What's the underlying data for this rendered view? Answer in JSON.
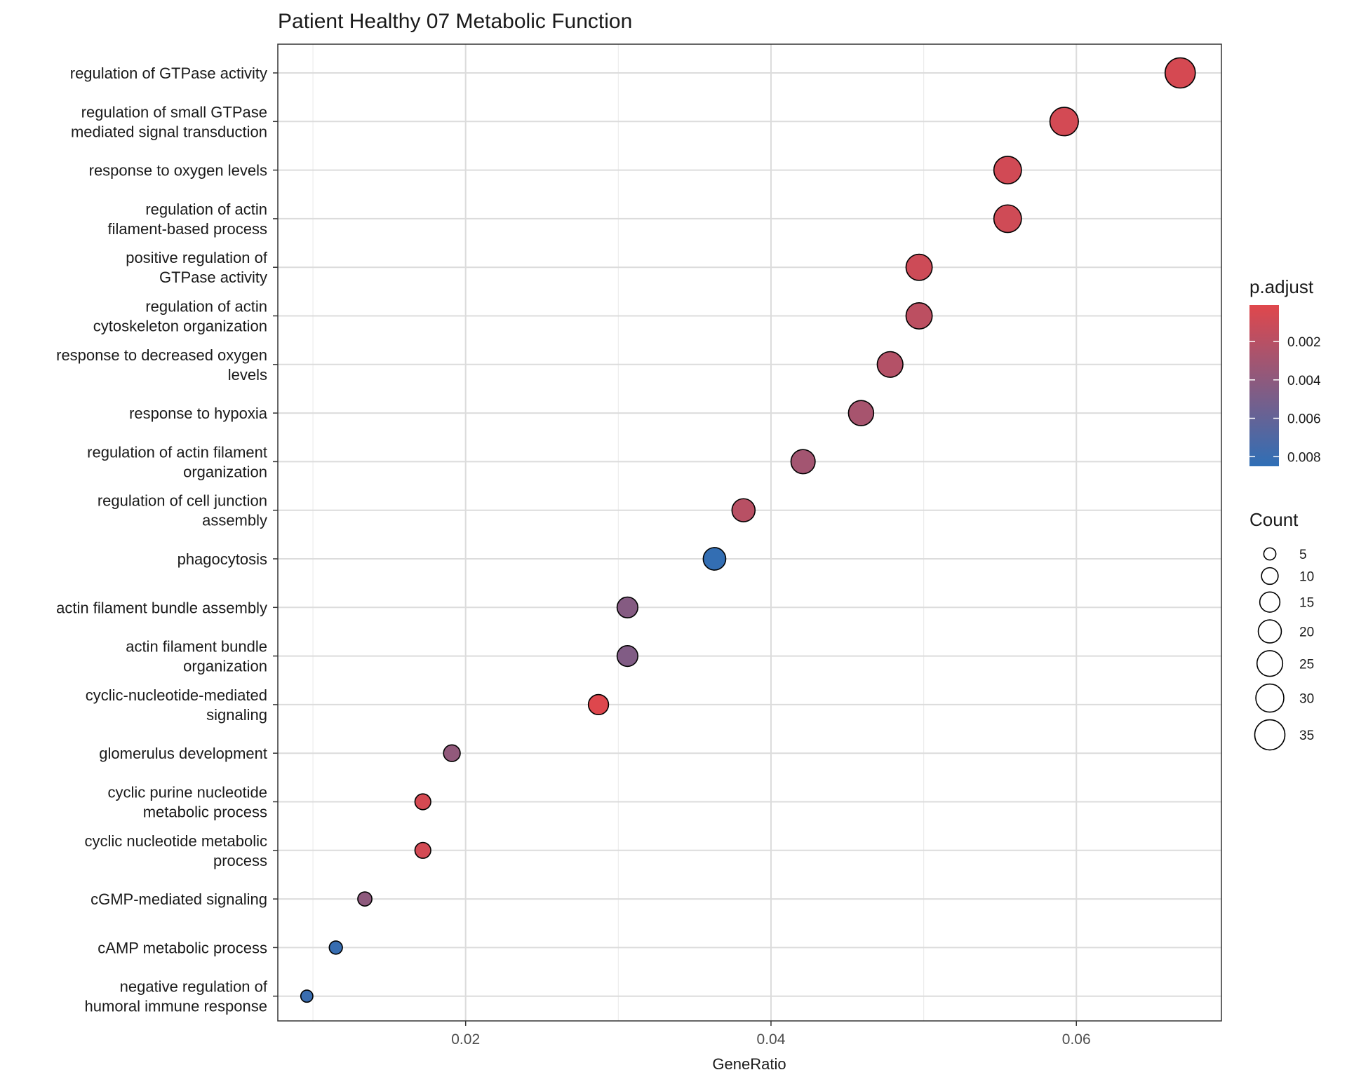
{
  "chart_data": {
    "type": "scatter",
    "title": "Patient Healthy 07 Metabolic Function",
    "xlabel": "GeneRatio",
    "ylabel": "",
    "xlim": [
      0.0077,
      0.0695
    ],
    "x_ticks": [
      0.02,
      0.04,
      0.06
    ],
    "x_tick_labels": [
      "0.02",
      "0.04",
      "0.06"
    ],
    "grid": true,
    "legend_position": "right",
    "color_legend": {
      "title": "p.adjust",
      "min_value": 0.0001,
      "max_value": 0.0085,
      "ticks": [
        0.002,
        0.004,
        0.006,
        0.008
      ],
      "tick_labels": [
        "0.002",
        "0.004",
        "0.006",
        "0.008"
      ],
      "low_color": "#e0474c",
      "high_color": "#2f6fb6"
    },
    "size_legend": {
      "title": "Count",
      "values": [
        5,
        10,
        15,
        20,
        25,
        30,
        35
      ],
      "labels": [
        "5",
        "10",
        "15",
        "20",
        "25",
        "30",
        "35"
      ]
    },
    "categories": [
      [
        "regulation of GTPase activity"
      ],
      [
        "regulation of small GTPase",
        "mediated signal transduction"
      ],
      [
        "response to oxygen levels"
      ],
      [
        "regulation of actin",
        "filament-based process"
      ],
      [
        "positive regulation of",
        "GTPase activity"
      ],
      [
        "regulation of actin",
        "cytoskeleton organization"
      ],
      [
        "response to decreased oxygen",
        "levels"
      ],
      [
        "response to hypoxia"
      ],
      [
        "regulation of actin filament",
        "organization"
      ],
      [
        "regulation of cell junction",
        "assembly"
      ],
      [
        "phagocytosis"
      ],
      [
        "actin filament bundle assembly"
      ],
      [
        "actin filament bundle",
        "organization"
      ],
      [
        "cyclic-nucleotide-mediated",
        "signaling"
      ],
      [
        "glomerulus development"
      ],
      [
        "cyclic purine nucleotide",
        "metabolic process"
      ],
      [
        "cyclic nucleotide metabolic",
        "process"
      ],
      [
        "cGMP-mediated signaling"
      ],
      [
        "cAMP metabolic process"
      ],
      [
        "negative regulation of",
        "humoral immune response"
      ]
    ],
    "series": [
      {
        "gene_ratio": [
          0.0668,
          0.0592,
          0.0555,
          0.0555,
          0.0497,
          0.0497,
          0.0478,
          0.0459,
          0.0421,
          0.0382,
          0.0363,
          0.0306,
          0.0306,
          0.0287,
          0.0191,
          0.0172,
          0.0172,
          0.0134,
          0.0115,
          0.0096
        ],
        "count": [
          35,
          31,
          29,
          29,
          26,
          26,
          25,
          24,
          22,
          20,
          19,
          16,
          16,
          15,
          10,
          9,
          9,
          7,
          6,
          5
        ],
        "p_adjust": [
          0.0006,
          0.0007,
          0.0008,
          0.0009,
          0.001,
          0.0018,
          0.0022,
          0.0028,
          0.003,
          0.002,
          0.0083,
          0.0044,
          0.0046,
          0.0002,
          0.0038,
          0.0006,
          0.0007,
          0.004,
          0.0081,
          0.008
        ]
      }
    ]
  }
}
